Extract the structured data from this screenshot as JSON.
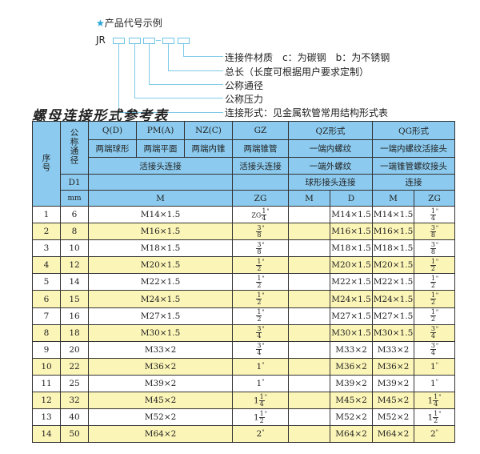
{
  "legend": {
    "heading": "产品代号示例",
    "star_icon": "star",
    "prefix": "JR",
    "items": [
      "连接件材质　c：为碳钢　b：为不锈钢",
      "总长（长度可根据用户要求定制）",
      "公称通径",
      "公称压力",
      "连接形式：见金属软管常用结构形式表"
    ]
  },
  "title": "螺母连接形式参考表",
  "colors": {
    "header": "#8ccbef",
    "alt_row": "#fcf5b8"
  },
  "header": {
    "seq": "序号",
    "dn": "公称通径",
    "d1": "D1",
    "mm": "mm",
    "q": "Q(D)",
    "pm": "PM(A)",
    "nz": "NZ(C)",
    "gz": "GZ",
    "qz": "QZ形式",
    "qg": "QG形式",
    "q2": "两端球形",
    "pm2": "两端平面",
    "nz2": "两端内锥",
    "gz2": "两端锥管",
    "qz2": "一端内螺纹",
    "qg2": "一端内螺纹活接头",
    "hjt": "活接头连接",
    "gz3": "活接头连接",
    "qz3": "一端外螺纹",
    "qg3": "一端锥管螺纹接头",
    "qz4": "球形接头连接",
    "qg4": "连接",
    "m": "M",
    "zg": "ZG",
    "qzm": "M",
    "qzd": "D",
    "qgm": "M",
    "qgzg": "ZG"
  },
  "rows": [
    {
      "no": "1",
      "dn": "6",
      "m": "M14×1.5",
      "zg": {
        "pre": "ZG",
        "whole": "",
        "num": "1",
        "den": "4"
      },
      "qzd": "M14×1.5",
      "qgm": "M14×1.5",
      "qgzg": {
        "pre": "",
        "whole": "",
        "num": "1",
        "den": "4"
      }
    },
    {
      "no": "2",
      "dn": "8",
      "m": "M16×1.5",
      "zg": {
        "pre": "",
        "whole": "",
        "num": "3",
        "den": "8"
      },
      "qzd": "M16×1.5",
      "qgm": "M16×1.5",
      "qgzg": {
        "pre": "",
        "whole": "",
        "num": "3",
        "den": "8"
      }
    },
    {
      "no": "3",
      "dn": "10",
      "m": "M18×1.5",
      "zg": {
        "pre": "",
        "whole": "",
        "num": "3",
        "den": "8"
      },
      "qzd": "M18×1.5",
      "qgm": "M18×1.5",
      "qgzg": {
        "pre": "",
        "whole": "",
        "num": "3",
        "den": "8"
      }
    },
    {
      "no": "4",
      "dn": "12",
      "m": "M20×1.5",
      "zg": {
        "pre": "",
        "whole": "",
        "num": "1",
        "den": "2"
      },
      "qzd": "M20×1.5",
      "qgm": "M20×1.5",
      "qgzg": {
        "pre": "",
        "whole": "",
        "num": "1",
        "den": "2"
      }
    },
    {
      "no": "5",
      "dn": "14",
      "m": "M22×1.5",
      "zg": {
        "pre": "",
        "whole": "",
        "num": "1",
        "den": "2"
      },
      "qzd": "M22×1.5",
      "qgm": "M22×1.5",
      "qgzg": {
        "pre": "",
        "whole": "",
        "num": "1",
        "den": "2"
      }
    },
    {
      "no": "6",
      "dn": "15",
      "m": "M24×1.5",
      "zg": {
        "pre": "",
        "whole": "",
        "num": "1",
        "den": "2"
      },
      "qzd": "M24×1.5",
      "qgm": "M24×1.5",
      "qgzg": {
        "pre": "",
        "whole": "",
        "num": "1",
        "den": "2"
      }
    },
    {
      "no": "7",
      "dn": "16",
      "m": "M27×1.5",
      "zg": {
        "pre": "",
        "whole": "",
        "num": "1",
        "den": "2"
      },
      "qzd": "M27×1.5",
      "qgm": "M27×1.5",
      "qgzg": {
        "pre": "",
        "whole": "",
        "num": "1",
        "den": "2"
      }
    },
    {
      "no": "8",
      "dn": "18",
      "m": "M30×1.5",
      "zg": {
        "pre": "",
        "whole": "",
        "num": "3",
        "den": "4"
      },
      "qzd": "M30×1.5",
      "qgm": "M30×1.5",
      "qgzg": {
        "pre": "",
        "whole": "",
        "num": "3",
        "den": "4"
      }
    },
    {
      "no": "9",
      "dn": "20",
      "m": "M33×2",
      "zg": {
        "pre": "",
        "whole": "",
        "num": "3",
        "den": "4"
      },
      "qzd": "M33×2",
      "qgm": "M33×2",
      "qgzg": {
        "pre": "",
        "whole": "",
        "num": "3",
        "den": "4"
      }
    },
    {
      "no": "10",
      "dn": "22",
      "m": "M36×2",
      "zg": {
        "pre": "",
        "whole": "1",
        "num": "",
        "den": ""
      },
      "qzd": "M36×2",
      "qgm": "M36×2",
      "qgzg": {
        "pre": "",
        "whole": "1",
        "num": "",
        "den": ""
      }
    },
    {
      "no": "11",
      "dn": "25",
      "m": "M39×2",
      "zg": {
        "pre": "",
        "whole": "1",
        "num": "",
        "den": ""
      },
      "qzd": "M39×2",
      "qgm": "M39×2",
      "qgzg": {
        "pre": "",
        "whole": "1",
        "num": "",
        "den": ""
      }
    },
    {
      "no": "12",
      "dn": "32",
      "m": "M45×2",
      "zg": {
        "pre": "",
        "whole": "1",
        "num": "1",
        "den": "4"
      },
      "qzd": "M45×2",
      "qgm": "M45×2",
      "qgzg": {
        "pre": "",
        "whole": "1",
        "num": "1",
        "den": "4"
      }
    },
    {
      "no": "13",
      "dn": "40",
      "m": "M52×2",
      "zg": {
        "pre": "",
        "whole": "1",
        "num": "1",
        "den": "2"
      },
      "qzd": "M52×2",
      "qgm": "M52×2",
      "qgzg": {
        "pre": "",
        "whole": "1",
        "num": "1",
        "den": "2"
      }
    },
    {
      "no": "14",
      "dn": "50",
      "m": "M64×2",
      "zg": {
        "pre": "",
        "whole": "2",
        "num": "",
        "den": ""
      },
      "qzd": "M64×2",
      "qgm": "M64×2",
      "qgzg": {
        "pre": "",
        "whole": "2",
        "num": "",
        "den": ""
      }
    }
  ]
}
